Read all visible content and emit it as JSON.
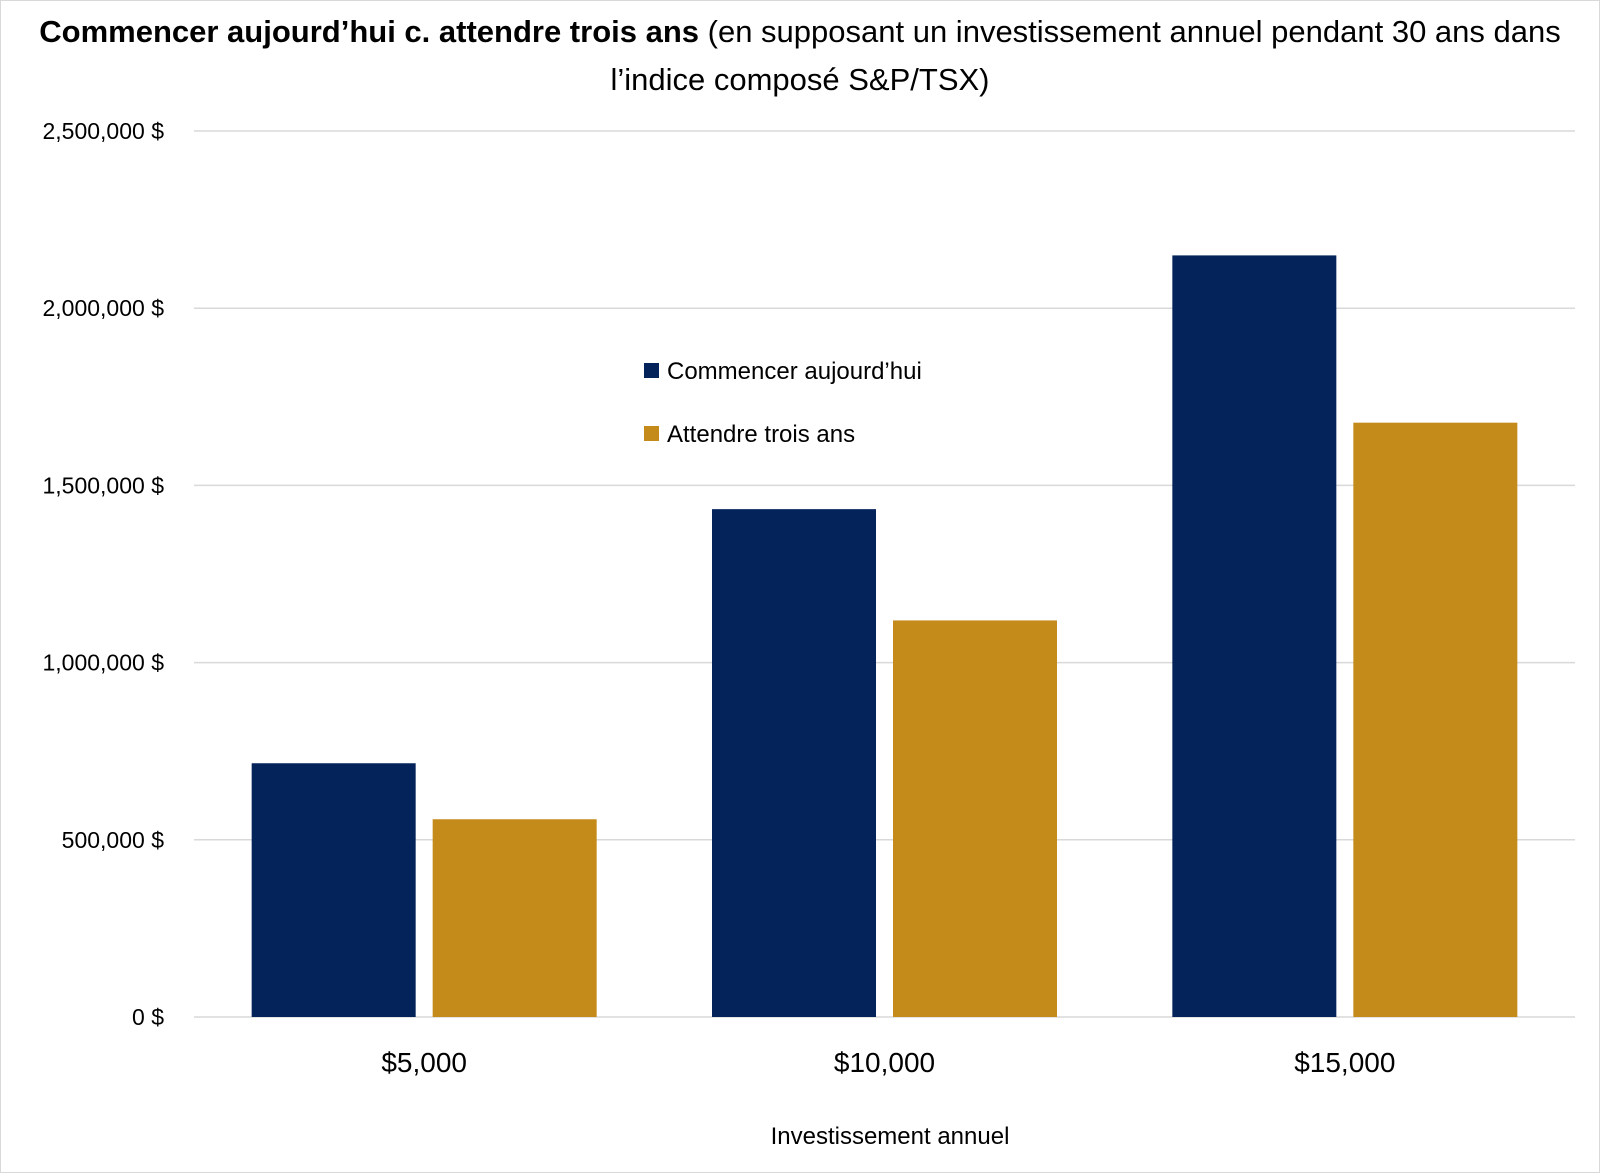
{
  "chart_data": {
    "type": "bar",
    "title_bold": "Commencer aujourd’hui c. attendre trois ans",
    "title_rest": " (en supposant un investissement annuel pendant 30 ans dans l’indice composé S&P/TSX)",
    "xlabel": "Investissement annuel",
    "ylabel": "",
    "categories": [
      "$5,000",
      "$10,000",
      "$15,000"
    ],
    "series": [
      {
        "name": "Commencer aujourd’hui",
        "color": "#03235A",
        "values": [
          716000,
          1433000,
          2149000
        ]
      },
      {
        "name": "Attendre trois ans",
        "color": "#C48A1A",
        "values": [
          558000,
          1119000,
          1677000
        ]
      }
    ],
    "ylim": [
      0,
      2500000
    ],
    "yticks": [
      0,
      500000,
      1000000,
      1500000,
      2000000,
      2500000
    ],
    "ytick_labels": [
      "0 $",
      "500,000 $",
      "1,000,000 $",
      "1,500,000 $",
      "2,000,000 $",
      "2,500,000 $"
    ],
    "grid": true,
    "legend_position": "center-left"
  }
}
